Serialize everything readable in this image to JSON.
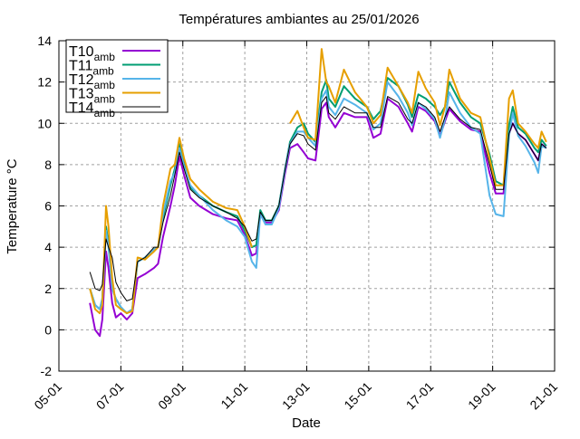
{
  "chart_data": {
    "type": "line",
    "title": "Températures ambiantes au 25/01/2026",
    "xlabel": "Date",
    "ylabel": "Temperature °C",
    "x_unit": "days since 05-01",
    "xlim": [
      0,
      16
    ],
    "ylim": [
      -2,
      14
    ],
    "xticks": [
      {
        "v": 0,
        "label": "05-01"
      },
      {
        "v": 2,
        "label": "07-01"
      },
      {
        "v": 4,
        "label": "09-01"
      },
      {
        "v": 6,
        "label": "11-01"
      },
      {
        "v": 8,
        "label": "13-01"
      },
      {
        "v": 10,
        "label": "15-01"
      },
      {
        "v": 12,
        "label": "17-01"
      },
      {
        "v": 14,
        "label": "19-01"
      },
      {
        "v": 16,
        "label": "21-01"
      }
    ],
    "yticks": [
      -2,
      0,
      2,
      4,
      6,
      8,
      10,
      12,
      14
    ],
    "grid": true,
    "legend_position": "top-left",
    "x": [
      1.0,
      1.17,
      1.32,
      1.4,
      1.52,
      1.6,
      1.72,
      1.84,
      2.0,
      2.19,
      2.37,
      2.54,
      2.78,
      3.07,
      3.2,
      3.36,
      3.6,
      3.74,
      3.89,
      4.04,
      4.24,
      4.53,
      4.97,
      5.4,
      5.76,
      6.0,
      6.23,
      6.37,
      6.5,
      6.67,
      6.87,
      7.1,
      7.3,
      7.46,
      7.7,
      7.9,
      8.04,
      8.28,
      8.48,
      8.63,
      8.71,
      8.92,
      9.2,
      9.56,
      9.94,
      10.15,
      10.38,
      10.61,
      10.96,
      11.26,
      11.4,
      11.6,
      11.84,
      12.13,
      12.3,
      12.46,
      12.6,
      12.95,
      13.3,
      13.6,
      13.9,
      14.1,
      14.35,
      14.53,
      14.65,
      14.82,
      15.06,
      15.35,
      15.47,
      15.58,
      15.73
    ],
    "series": [
      {
        "name": "T10",
        "sub": "amb",
        "color": "#9400d3",
        "width": 2,
        "values": [
          1.3,
          0.0,
          -0.3,
          0.5,
          3.8,
          3.0,
          1.3,
          0.6,
          0.8,
          0.5,
          0.8,
          2.5,
          2.7,
          3.0,
          3.2,
          4.5,
          6.0,
          7.0,
          8.4,
          7.5,
          6.4,
          6.0,
          5.6,
          5.4,
          5.3,
          4.6,
          3.6,
          3.7,
          5.6,
          5.2,
          5.2,
          5.8,
          7.6,
          8.8,
          9.0,
          8.6,
          8.3,
          8.2,
          10.7,
          11.0,
          10.3,
          9.8,
          10.5,
          10.3,
          10.3,
          9.3,
          9.5,
          11.2,
          10.8,
          10.0,
          9.6,
          10.8,
          10.6,
          10.1,
          9.4,
          10.1,
          10.7,
          10.1,
          9.7,
          9.6,
          7.6,
          6.6,
          6.6,
          9.5,
          10.0,
          9.5,
          9.2,
          8.5,
          8.2,
          9.0,
          8.8
        ]
      },
      {
        "name": "T11",
        "sub": "amb",
        "color": "#009e73",
        "width": 2,
        "values": [
          2.0,
          1.2,
          1.0,
          1.5,
          5.0,
          4.2,
          2.0,
          1.5,
          1.1,
          0.8,
          1.0,
          3.3,
          3.5,
          3.9,
          4.0,
          5.4,
          7.0,
          7.8,
          9.0,
          8.0,
          6.9,
          6.5,
          6.0,
          5.7,
          5.5,
          4.8,
          4.0,
          4.1,
          5.8,
          5.3,
          5.3,
          6.0,
          7.8,
          9.1,
          9.8,
          10.0,
          9.5,
          9.1,
          11.5,
          12.1,
          11.2,
          10.8,
          11.8,
          11.2,
          10.8,
          10.2,
          10.6,
          12.2,
          11.8,
          10.9,
          10.3,
          11.4,
          11.2,
          10.8,
          10.4,
          10.8,
          12.0,
          11.0,
          10.3,
          10.0,
          8.5,
          7.2,
          7.0,
          9.9,
          10.8,
          9.8,
          9.5,
          8.8,
          8.6,
          9.2,
          8.9
        ]
      },
      {
        "name": "T12",
        "sub": "amb",
        "color": "#56b4e9",
        "width": 2,
        "values": [
          2.0,
          1.2,
          1.0,
          1.5,
          4.8,
          4.0,
          2.0,
          1.5,
          1.1,
          0.8,
          1.0,
          3.3,
          3.5,
          3.9,
          4.0,
          5.6,
          7.2,
          7.6,
          8.8,
          7.9,
          7.0,
          6.5,
          5.8,
          5.3,
          5.0,
          4.5,
          3.3,
          3.0,
          5.6,
          5.1,
          5.1,
          5.9,
          7.8,
          9.0,
          9.6,
          9.6,
          9.3,
          8.9,
          11.2,
          11.6,
          10.8,
          10.4,
          11.2,
          10.9,
          10.5,
          9.7,
          10.0,
          12.0,
          11.3,
          10.5,
          9.9,
          11.0,
          10.7,
          10.2,
          9.3,
          10.2,
          11.5,
          10.5,
          9.8,
          9.5,
          6.5,
          5.6,
          5.5,
          9.4,
          10.5,
          9.4,
          8.9,
          8.1,
          7.6,
          8.9,
          8.8
        ]
      },
      {
        "name": "T13",
        "sub": "amb",
        "color": "#e69f00",
        "width": 2,
        "values": [
          2.0,
          1.0,
          0.8,
          1.2,
          6.0,
          5.0,
          2.5,
          1.2,
          1.0,
          0.8,
          0.9,
          3.5,
          3.4,
          3.8,
          4.0,
          6.0,
          7.8,
          8.0,
          9.3,
          8.3,
          7.3,
          6.8,
          6.2,
          5.9,
          5.8,
          5.0,
          4.0,
          null,
          null,
          null,
          null,
          null,
          null,
          10.0,
          10.6,
          9.8,
          9.3,
          9.2,
          13.6,
          12.0,
          11.8,
          11.0,
          12.6,
          11.5,
          10.8,
          10.0,
          10.4,
          12.7,
          11.8,
          11.0,
          10.5,
          12.5,
          11.7,
          11.0,
          9.9,
          10.8,
          12.6,
          11.2,
          10.5,
          10.3,
          8.3,
          7.0,
          7.0,
          11.2,
          11.6,
          10.0,
          9.6,
          9.0,
          8.8,
          9.6,
          9.1
        ]
      },
      {
        "name": "T14",
        "sub": "amb",
        "color": "#000000",
        "width": 1,
        "values": [
          2.8,
          2.0,
          1.9,
          2.2,
          4.4,
          4.0,
          3.5,
          2.3,
          1.8,
          1.4,
          1.5,
          3.3,
          3.5,
          4.0,
          4.0,
          5.2,
          6.5,
          7.5,
          8.6,
          7.8,
          6.8,
          6.4,
          6.0,
          5.7,
          5.4,
          5.0,
          4.3,
          4.4,
          5.7,
          5.3,
          5.3,
          6.0,
          7.8,
          9.0,
          9.5,
          9.4,
          9.0,
          8.7,
          11.0,
          11.3,
          10.5,
          10.2,
          10.8,
          10.5,
          10.5,
          9.8,
          9.8,
          11.3,
          11.0,
          10.2,
          10.0,
          11.0,
          10.8,
          10.3,
          9.6,
          10.3,
          10.8,
          10.2,
          9.8,
          9.7,
          8.0,
          6.8,
          6.8,
          9.5,
          10.0,
          9.5,
          9.2,
          8.5,
          8.2,
          9.0,
          8.8
        ]
      }
    ]
  }
}
